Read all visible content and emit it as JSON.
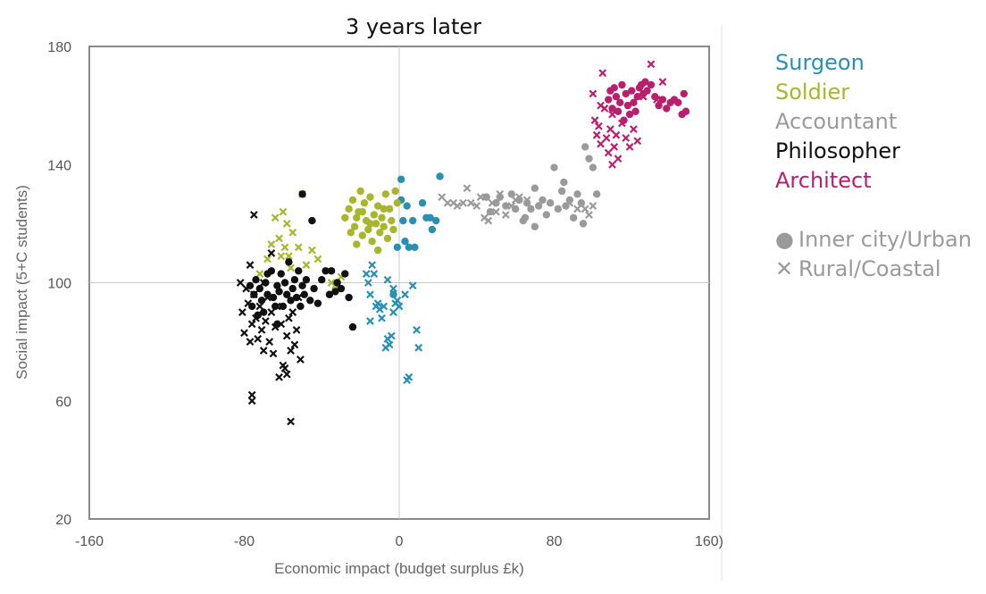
{
  "chart_data": {
    "type": "scatter",
    "title": "3 years later",
    "xlabel": "Economic impact (budget surplus £k)",
    "ylabel": "Social impact (5+C students)",
    "xlim": [
      -160,
      160
    ],
    "ylim": [
      20,
      180
    ],
    "x_ticks": [
      "-160",
      "-80",
      "0",
      "80",
      "160)"
    ],
    "y_ticks": [
      "180",
      "140",
      "100",
      "60",
      "20"
    ],
    "reference_lines": {
      "x": 0,
      "y": 100
    },
    "marker_legend": [
      {
        "label": "Inner city/Urban",
        "marker": "dot"
      },
      {
        "label": "Rural/Coastal",
        "marker": "cross"
      }
    ],
    "series": [
      {
        "name": "Surgeon",
        "color": "#2a8fb0",
        "points_urban": [
          [
            1,
            135
          ],
          [
            1,
            128
          ],
          [
            2,
            121
          ],
          [
            3,
            114
          ],
          [
            4,
            126
          ],
          [
            5,
            112
          ],
          [
            7,
            121
          ],
          [
            8,
            112
          ],
          [
            12,
            127
          ],
          [
            14,
            122
          ],
          [
            16,
            122
          ],
          [
            17,
            118
          ],
          [
            19,
            121
          ],
          [
            21,
            136
          ],
          [
            -3,
            96
          ],
          [
            -1,
            112
          ]
        ],
        "points_rural": [
          [
            -17,
            103
          ],
          [
            -16,
            100
          ],
          [
            -15,
            96
          ],
          [
            -15,
            87
          ],
          [
            -14,
            106
          ],
          [
            -13,
            103
          ],
          [
            -12,
            92
          ],
          [
            -11,
            93
          ],
          [
            -10,
            91
          ],
          [
            -9,
            88
          ],
          [
            -8,
            92
          ],
          [
            -7,
            78
          ],
          [
            -6,
            81
          ],
          [
            -5,
            79
          ],
          [
            -4,
            82
          ],
          [
            -3,
            90
          ],
          [
            -2,
            93
          ],
          [
            -1,
            94
          ],
          [
            0,
            92
          ],
          [
            3,
            96
          ],
          [
            4,
            67
          ],
          [
            5,
            68
          ],
          [
            7,
            99
          ],
          [
            9,
            84
          ],
          [
            10,
            78
          ],
          [
            -6,
            101
          ],
          [
            -3,
            98
          ]
        ]
      },
      {
        "name": "Soldier",
        "color": "#a8b52e",
        "points_urban": [
          [
            -28,
            122
          ],
          [
            -26,
            125
          ],
          [
            -25,
            117
          ],
          [
            -24,
            128
          ],
          [
            -23,
            119
          ],
          [
            -22,
            113
          ],
          [
            -21,
            124
          ],
          [
            -20,
            131
          ],
          [
            -19,
            116
          ],
          [
            -18,
            127
          ],
          [
            -17,
            121
          ],
          [
            -16,
            118
          ],
          [
            -15,
            129
          ],
          [
            -14,
            114
          ],
          [
            -13,
            123
          ],
          [
            -12,
            120
          ],
          [
            -11,
            126
          ],
          [
            -10,
            117
          ],
          [
            -9,
            122
          ],
          [
            -8,
            119
          ],
          [
            -7,
            130
          ],
          [
            -6,
            115
          ],
          [
            -5,
            125
          ],
          [
            -4,
            121
          ],
          [
            -3,
            118
          ],
          [
            -2,
            131
          ],
          [
            -1,
            127
          ],
          [
            -19,
            124
          ],
          [
            -15,
            120
          ],
          [
            -11,
            111
          ],
          [
            -22,
            122
          ],
          [
            -8,
            125
          ]
        ],
        "points_rural": [
          [
            -72,
            103
          ],
          [
            -68,
            108
          ],
          [
            -66,
            113
          ],
          [
            -64,
            122
          ],
          [
            -62,
            115
          ],
          [
            -61,
            109
          ],
          [
            -60,
            124
          ],
          [
            -59,
            112
          ],
          [
            -58,
            120
          ],
          [
            -57,
            109
          ],
          [
            -56,
            105
          ],
          [
            -55,
            117
          ],
          [
            -52,
            112
          ],
          [
            -50,
            130
          ],
          [
            -48,
            106
          ],
          [
            -45,
            111
          ],
          [
            -42,
            108
          ],
          [
            -35,
            100
          ],
          [
            -33,
            99
          ],
          [
            -30,
            102
          ]
        ]
      },
      {
        "name": "Accountant",
        "color": "#9a9a9a",
        "points_urban": [
          [
            45,
            129
          ],
          [
            47,
            124
          ],
          [
            50,
            127
          ],
          [
            52,
            129
          ],
          [
            55,
            126
          ],
          [
            58,
            130
          ],
          [
            60,
            125
          ],
          [
            62,
            128
          ],
          [
            64,
            121
          ],
          [
            66,
            127
          ],
          [
            68,
            125
          ],
          [
            70,
            132
          ],
          [
            72,
            126
          ],
          [
            74,
            128
          ],
          [
            76,
            123
          ],
          [
            78,
            127
          ],
          [
            80,
            139
          ],
          [
            82,
            125
          ],
          [
            84,
            131
          ],
          [
            86,
            126
          ],
          [
            88,
            128
          ],
          [
            90,
            122
          ],
          [
            92,
            130
          ],
          [
            94,
            127
          ],
          [
            96,
            146
          ],
          [
            98,
            142
          ],
          [
            100,
            139
          ],
          [
            102,
            130
          ],
          [
            95,
            120
          ],
          [
            70,
            119
          ],
          [
            65,
            122
          ],
          [
            85,
            134
          ]
        ],
        "points_rural": [
          [
            22,
            129
          ],
          [
            25,
            127
          ],
          [
            28,
            127
          ],
          [
            30,
            126
          ],
          [
            33,
            127
          ],
          [
            35,
            132
          ],
          [
            37,
            127
          ],
          [
            40,
            126
          ],
          [
            42,
            129
          ],
          [
            44,
            122
          ],
          [
            46,
            121
          ],
          [
            48,
            127
          ],
          [
            50,
            124
          ],
          [
            52,
            130
          ],
          [
            55,
            123
          ],
          [
            58,
            126
          ],
          [
            60,
            128
          ],
          [
            62,
            129
          ],
          [
            66,
            128
          ],
          [
            88,
            127
          ],
          [
            92,
            125
          ],
          [
            96,
            125
          ],
          [
            98,
            123
          ],
          [
            100,
            126
          ]
        ]
      },
      {
        "name": "Philosopher",
        "color": "#111111",
        "points_urban": [
          [
            -77,
            99
          ],
          [
            -76,
            92
          ],
          [
            -75,
            96
          ],
          [
            -74,
            101
          ],
          [
            -73,
            89
          ],
          [
            -72,
            98
          ],
          [
            -71,
            94
          ],
          [
            -70,
            90
          ],
          [
            -69,
            100
          ],
          [
            -68,
            96
          ],
          [
            -66,
            104
          ],
          [
            -65,
            95
          ],
          [
            -64,
            92
          ],
          [
            -63,
            99
          ],
          [
            -62,
            97
          ],
          [
            -61,
            103
          ],
          [
            -60,
            92
          ],
          [
            -59,
            100
          ],
          [
            -58,
            96
          ],
          [
            -57,
            107
          ],
          [
            -56,
            94
          ],
          [
            -55,
            98
          ],
          [
            -54,
            101
          ],
          [
            -53,
            95
          ],
          [
            -52,
            104
          ],
          [
            -51,
            92
          ],
          [
            -50,
            99
          ],
          [
            -49,
            96
          ],
          [
            -48,
            101
          ],
          [
            -46,
            94
          ],
          [
            -45,
            121
          ],
          [
            -44,
            98
          ],
          [
            -42,
            93
          ],
          [
            -40,
            101
          ],
          [
            -38,
            104
          ],
          [
            -36,
            96
          ],
          [
            -35,
            104
          ],
          [
            -33,
            97
          ],
          [
            -32,
            100
          ],
          [
            -30,
            98
          ],
          [
            -28,
            103
          ],
          [
            -26,
            95
          ],
          [
            -24,
            85
          ],
          [
            -50,
            130
          ],
          [
            -63,
            86
          ],
          [
            -68,
            103
          ]
        ],
        "points_rural": [
          [
            -82,
            100
          ],
          [
            -81,
            90
          ],
          [
            -80,
            83
          ],
          [
            -79,
            98
          ],
          [
            -78,
            93
          ],
          [
            -77,
            106
          ],
          [
            -77,
            80
          ],
          [
            -76,
            86
          ],
          [
            -76,
            62
          ],
          [
            -76,
            60
          ],
          [
            -75,
            96
          ],
          [
            -75,
            123
          ],
          [
            -74,
            88
          ],
          [
            -73,
            81
          ],
          [
            -72,
            92
          ],
          [
            -71,
            84
          ],
          [
            -70,
            100
          ],
          [
            -70,
            77
          ],
          [
            -69,
            87
          ],
          [
            -68,
            95
          ],
          [
            -67,
            80
          ],
          [
            -66,
            90
          ],
          [
            -65,
            76
          ],
          [
            -64,
            85
          ],
          [
            -63,
            92
          ],
          [
            -62,
            68
          ],
          [
            -61,
            86
          ],
          [
            -60,
            72
          ],
          [
            -59,
            71
          ],
          [
            -58,
            82
          ],
          [
            -57,
            88
          ],
          [
            -56,
            77
          ],
          [
            -55,
            90
          ],
          [
            -54,
            79
          ],
          [
            -53,
            84
          ],
          [
            -52,
            95
          ],
          [
            -51,
            74
          ],
          [
            -56,
            53
          ],
          [
            -58,
            69
          ],
          [
            -66,
            110
          ]
        ]
      },
      {
        "name": "Architect",
        "color": "#b8206e",
        "points_urban": [
          [
            108,
            162
          ],
          [
            109,
            165
          ],
          [
            110,
            159
          ],
          [
            111,
            166
          ],
          [
            112,
            163
          ],
          [
            113,
            158
          ],
          [
            114,
            161
          ],
          [
            115,
            167
          ],
          [
            116,
            155
          ],
          [
            117,
            164
          ],
          [
            118,
            160
          ],
          [
            119,
            157
          ],
          [
            120,
            165
          ],
          [
            121,
            161
          ],
          [
            122,
            158
          ],
          [
            123,
            163
          ],
          [
            124,
            166
          ],
          [
            125,
            167
          ],
          [
            126,
            164
          ],
          [
            127,
            168
          ],
          [
            128,
            165
          ],
          [
            130,
            167
          ],
          [
            132,
            163
          ],
          [
            134,
            160
          ],
          [
            136,
            162
          ],
          [
            138,
            159
          ],
          [
            140,
            161
          ],
          [
            142,
            162
          ],
          [
            144,
            161
          ],
          [
            146,
            157
          ],
          [
            147,
            164
          ],
          [
            148,
            158
          ]
        ],
        "points_rural": [
          [
            100,
            164
          ],
          [
            101,
            155
          ],
          [
            102,
            150
          ],
          [
            103,
            153
          ],
          [
            104,
            147
          ],
          [
            105,
            171
          ],
          [
            106,
            159
          ],
          [
            107,
            149
          ],
          [
            108,
            144
          ],
          [
            109,
            152
          ],
          [
            110,
            140
          ],
          [
            111,
            146
          ],
          [
            112,
            150
          ],
          [
            113,
            142
          ],
          [
            115,
            154
          ],
          [
            117,
            149
          ],
          [
            119,
            146
          ],
          [
            121,
            152
          ],
          [
            123,
            148
          ],
          [
            126,
            163
          ],
          [
            130,
            174
          ],
          [
            133,
            162
          ],
          [
            136,
            168
          ],
          [
            110,
            157
          ],
          [
            104,
            160
          ]
        ]
      }
    ]
  }
}
